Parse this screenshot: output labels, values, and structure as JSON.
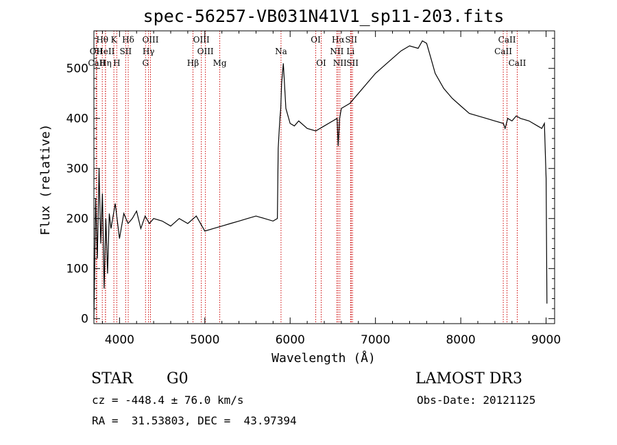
{
  "chart_data": {
    "type": "line",
    "title": "spec-56257-VB031N41V1_sp11-203.fits",
    "xlabel": "Wavelength (Å)",
    "ylabel": "Flux (relative)",
    "xlim": [
      3700,
      9100
    ],
    "ylim": [
      -10,
      575
    ],
    "xticks": [
      4000,
      5000,
      6000,
      7000,
      8000,
      9000
    ],
    "yticks": [
      0,
      100,
      200,
      300,
      400,
      500
    ],
    "grid": false,
    "series": [
      {
        "name": "flux",
        "x": [
          3700,
          3720,
          3740,
          3760,
          3780,
          3800,
          3820,
          3840,
          3860,
          3880,
          3900,
          3950,
          4000,
          4050,
          4100,
          4150,
          4200,
          4250,
          4300,
          4350,
          4400,
          4500,
          4600,
          4700,
          4800,
          4900,
          5000,
          5100,
          5200,
          5300,
          5400,
          5500,
          5600,
          5700,
          5800,
          5850,
          5860,
          5870,
          5880,
          5890,
          5900,
          5920,
          5950,
          6000,
          6050,
          6100,
          6200,
          6300,
          6400,
          6500,
          6550,
          6563,
          6580,
          6600,
          6700,
          6800,
          6900,
          7000,
          7100,
          7200,
          7300,
          7400,
          7500,
          7550,
          7600,
          7650,
          7700,
          7800,
          7900,
          8000,
          8100,
          8200,
          8300,
          8400,
          8500,
          8520,
          8550,
          8600,
          8650,
          8700,
          8800,
          8900,
          8950,
          8980,
          9000,
          9010
        ],
        "y": [
          0,
          240,
          120,
          300,
          150,
          250,
          60,
          200,
          90,
          210,
          180,
          230,
          160,
          210,
          190,
          200,
          215,
          180,
          205,
          190,
          200,
          195,
          185,
          200,
          190,
          205,
          175,
          180,
          185,
          190,
          195,
          200,
          205,
          200,
          195,
          200,
          340,
          370,
          400,
          420,
          470,
          510,
          420,
          390,
          385,
          395,
          380,
          375,
          385,
          395,
          400,
          345,
          400,
          420,
          430,
          450,
          470,
          490,
          505,
          520,
          535,
          545,
          540,
          555,
          550,
          520,
          490,
          460,
          440,
          425,
          410,
          405,
          400,
          395,
          390,
          380,
          400,
          395,
          405,
          400,
          395,
          385,
          380,
          390,
          280,
          30
        ]
      }
    ],
    "lines": [
      {
        "name": "Hθ",
        "w": 3798,
        "row": 1
      },
      {
        "name": "OII",
        "w": 3727,
        "row": 2
      },
      {
        "name": "CaII",
        "w": 3734,
        "row": 3
      },
      {
        "name": "Hη",
        "w": 3836,
        "row": 3
      },
      {
        "name": "HeII",
        "w": 3835,
        "row": 2
      },
      {
        "name": "K",
        "w": 3934,
        "row": 1
      },
      {
        "name": "SII",
        "w": 4072,
        "row": 2
      },
      {
        "name": "H",
        "w": 3968,
        "row": 3
      },
      {
        "name": "Hδ",
        "w": 4102,
        "row": 1
      },
      {
        "name": "OIII",
        "w": 4363,
        "row": 1
      },
      {
        "name": "Hγ",
        "w": 4340,
        "row": 2
      },
      {
        "name": "G",
        "w": 4305,
        "row": 3
      },
      {
        "name": "OIII",
        "w": 4959,
        "row": 1
      },
      {
        "name": "OIII",
        "w": 5007,
        "row": 2
      },
      {
        "name": "Hβ",
        "w": 4861,
        "row": 3
      },
      {
        "name": "Mg",
        "w": 5175,
        "row": 3
      },
      {
        "name": "Na",
        "w": 5893,
        "row": 2
      },
      {
        "name": "OI",
        "w": 6300,
        "row": 1
      },
      {
        "name": "OI",
        "w": 6364,
        "row": 3
      },
      {
        "name": "Hα",
        "w": 6563,
        "row": 1
      },
      {
        "name": "SII",
        "w": 6716,
        "row": 1
      },
      {
        "name": "NII",
        "w": 6548,
        "row": 2
      },
      {
        "name": "Li",
        "w": 6708,
        "row": 2
      },
      {
        "name": "NII",
        "w": 6583,
        "row": 3
      },
      {
        "name": "SII",
        "w": 6731,
        "row": 3
      },
      {
        "name": "CaII",
        "w": 8542,
        "row": 1
      },
      {
        "name": "CaII",
        "w": 8498,
        "row": 2
      },
      {
        "name": "CaII",
        "w": 8662,
        "row": 3
      }
    ]
  },
  "info": {
    "class_label": "STAR",
    "subclass": "G0",
    "survey": "LAMOST DR3",
    "velocity": "cz = -448.4 ± 76.0 km/s",
    "obs_date": "Obs-Date: 20121125",
    "coords": "RA =  31.53803, DEC =  43.97394"
  }
}
